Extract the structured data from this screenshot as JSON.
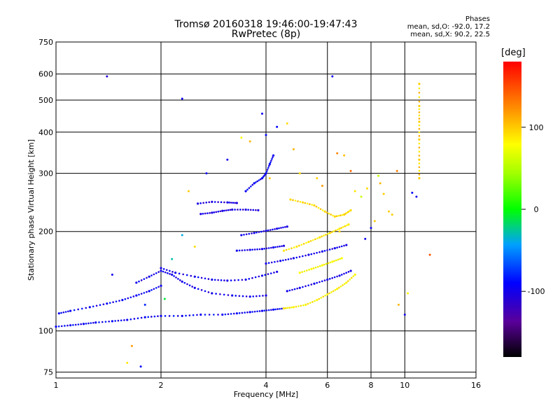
{
  "chart_data": {
    "type": "scatter",
    "title": "Tromsø 20160318 19:46:00-19:47:43",
    "subtitle": "RwPretec (8p)",
    "xlabel": "Frequency [MHz]",
    "ylabel": "Stationary phase Virtual Height [km]",
    "x_scale": "log",
    "y_scale": "log",
    "xlim": [
      1,
      16
    ],
    "ylim": [
      72,
      750
    ],
    "grid": true,
    "x_ticks": [
      {
        "value": 1,
        "label": "1"
      },
      {
        "value": 2,
        "label": "2"
      },
      {
        "value": 4,
        "label": "4"
      },
      {
        "value": 6,
        "label": "6"
      },
      {
        "value": 8,
        "label": "8"
      },
      {
        "value": 10,
        "label": "10"
      },
      {
        "value": 16,
        "label": "16"
      }
    ],
    "y_ticks": [
      {
        "value": 75,
        "label": "75"
      },
      {
        "value": 100,
        "label": "100"
      },
      {
        "value": 200,
        "label": "200"
      },
      {
        "value": 300,
        "label": "300"
      },
      {
        "value": 400,
        "label": "400"
      },
      {
        "value": 500,
        "label": "500"
      },
      {
        "value": 600,
        "label": "600"
      },
      {
        "value": 750,
        "label": "750"
      }
    ],
    "phases": {
      "title": "Phases",
      "o_line": "mean, sd,O: -92.0, 17.2",
      "x_line": "mean, sd,X: 90.2, 22.5"
    },
    "colorbar": {
      "unit": "[deg]",
      "ticks": [
        {
          "value": 100,
          "label": "100"
        },
        {
          "value": 0,
          "label": "0"
        },
        {
          "value": -100,
          "label": "-100"
        }
      ],
      "range": [
        -180,
        180
      ]
    },
    "traces": [
      {
        "name": "",
        "phase": -95,
        "points": [
          [
            1.0,
            103
          ],
          [
            1.1,
            104
          ],
          [
            1.2,
            105
          ],
          [
            1.3,
            106
          ],
          [
            1.45,
            107
          ],
          [
            1.6,
            108
          ],
          [
            1.8,
            110
          ],
          [
            2.0,
            111
          ],
          [
            2.3,
            111
          ],
          [
            2.6,
            112
          ],
          [
            3.0,
            112
          ],
          [
            3.3,
            113
          ],
          [
            3.6,
            114
          ],
          [
            3.9,
            115
          ],
          [
            4.2,
            116
          ],
          [
            4.5,
            117
          ]
        ]
      },
      {
        "name": "",
        "phase": -95,
        "points": [
          [
            1.02,
            113
          ],
          [
            1.1,
            115
          ],
          [
            1.25,
            118
          ],
          [
            1.4,
            121
          ],
          [
            1.55,
            124
          ],
          [
            1.7,
            128
          ],
          [
            1.85,
            132
          ],
          [
            2.0,
            137
          ]
        ]
      },
      {
        "name": "",
        "phase": -100,
        "points": [
          [
            1.7,
            140
          ],
          [
            1.85,
            146
          ],
          [
            2.0,
            152
          ],
          [
            2.15,
            148
          ],
          [
            2.3,
            141
          ],
          [
            2.5,
            135
          ],
          [
            2.8,
            130
          ],
          [
            3.2,
            128
          ],
          [
            3.6,
            127
          ],
          [
            4.0,
            128
          ]
        ]
      },
      {
        "name": "",
        "phase": -100,
        "points": [
          [
            2.0,
            155
          ],
          [
            2.2,
            150
          ],
          [
            2.5,
            146
          ],
          [
            2.8,
            143
          ],
          [
            3.1,
            142
          ],
          [
            3.5,
            143
          ],
          [
            3.9,
            147
          ],
          [
            4.3,
            151
          ]
        ]
      },
      {
        "name": "",
        "phase": -105,
        "points": [
          [
            2.6,
            226
          ],
          [
            2.8,
            228
          ],
          [
            3.0,
            231
          ],
          [
            3.2,
            233
          ],
          [
            3.5,
            233
          ],
          [
            3.8,
            232
          ]
        ]
      },
      {
        "name": "",
        "phase": -105,
        "points": [
          [
            2.55,
            243
          ],
          [
            2.8,
            246
          ],
          [
            3.1,
            245
          ],
          [
            3.3,
            244
          ]
        ]
      },
      {
        "name": "",
        "phase": -100,
        "points": [
          [
            3.3,
            175
          ],
          [
            3.6,
            176
          ],
          [
            3.9,
            177
          ],
          [
            4.2,
            179
          ],
          [
            4.5,
            181
          ]
        ]
      },
      {
        "name": "",
        "phase": -100,
        "points": [
          [
            3.4,
            195
          ],
          [
            3.7,
            198
          ],
          [
            4.0,
            201
          ],
          [
            4.3,
            204
          ],
          [
            4.6,
            207
          ]
        ]
      },
      {
        "name": "",
        "phase": -95,
        "points": [
          [
            3.5,
            265
          ],
          [
            3.7,
            280
          ],
          [
            3.9,
            290
          ],
          [
            4.0,
            300
          ],
          [
            4.1,
            320
          ],
          [
            4.2,
            340
          ]
        ]
      },
      {
        "name": "",
        "phase": -100,
        "points": [
          [
            4.0,
            160
          ],
          [
            4.4,
            163
          ],
          [
            4.8,
            166
          ],
          [
            5.3,
            170
          ],
          [
            5.8,
            174
          ],
          [
            6.3,
            178
          ],
          [
            6.8,
            182
          ]
        ]
      },
      {
        "name": "",
        "phase": -100,
        "points": [
          [
            4.6,
            132
          ],
          [
            5.0,
            135
          ],
          [
            5.5,
            139
          ],
          [
            6.0,
            143
          ],
          [
            6.5,
            147
          ],
          [
            7.0,
            152
          ]
        ]
      },
      {
        "name": "",
        "phase": 85,
        "points": [
          [
            4.5,
            117
          ],
          [
            4.8,
            118
          ],
          [
            5.2,
            120
          ],
          [
            5.6,
            124
          ],
          [
            6.0,
            129
          ],
          [
            6.4,
            134
          ],
          [
            6.8,
            140
          ],
          [
            7.2,
            148
          ]
        ]
      },
      {
        "name": "",
        "phase": 90,
        "points": [
          [
            4.5,
            175
          ],
          [
            4.9,
            180
          ],
          [
            5.3,
            186
          ],
          [
            5.7,
            192
          ],
          [
            6.1,
            198
          ],
          [
            6.5,
            204
          ],
          [
            6.9,
            210
          ]
        ]
      },
      {
        "name": "",
        "phase": 95,
        "points": [
          [
            4.7,
            250
          ],
          [
            5.1,
            245
          ],
          [
            5.5,
            240
          ],
          [
            5.9,
            230
          ],
          [
            6.3,
            222
          ],
          [
            6.7,
            225
          ],
          [
            7.0,
            232
          ]
        ]
      },
      {
        "name": "",
        "phase": 80,
        "points": [
          [
            5.0,
            150
          ],
          [
            5.4,
            154
          ],
          [
            5.8,
            158
          ],
          [
            6.2,
            162
          ],
          [
            6.6,
            166
          ]
        ]
      },
      {
        "name": "",
        "phase": 100,
        "points": [
          [
            11.0,
            290
          ],
          [
            11.0,
            330
          ],
          [
            11.0,
            380
          ],
          [
            11.0,
            430
          ],
          [
            11.0,
            480
          ],
          [
            11.0,
            560
          ]
        ]
      }
    ],
    "scattered_points": [
      [
        1.4,
        590,
        -110
      ],
      [
        2.3,
        505,
        -95
      ],
      [
        3.9,
        455,
        -95
      ],
      [
        4.3,
        415,
        -90
      ],
      [
        4.6,
        425,
        95
      ],
      [
        3.4,
        385,
        80
      ],
      [
        3.1,
        330,
        -100
      ],
      [
        4.0,
        392,
        -90
      ],
      [
        1.45,
        148,
        -100
      ],
      [
        1.6,
        80,
        90
      ],
      [
        1.65,
        90,
        120
      ],
      [
        1.75,
        78,
        -90
      ],
      [
        1.8,
        120,
        -80
      ],
      [
        2.4,
        265,
        100
      ],
      [
        2.5,
        180,
        95
      ],
      [
        2.3,
        195,
        -40
      ],
      [
        6.5,
        200,
        100
      ],
      [
        7.2,
        265,
        90
      ],
      [
        7.5,
        255,
        60
      ],
      [
        8.0,
        205,
        -95
      ],
      [
        8.2,
        215,
        100
      ],
      [
        8.5,
        280,
        110
      ],
      [
        8.7,
        260,
        100
      ],
      [
        9.0,
        230,
        100
      ],
      [
        9.5,
        305,
        130
      ],
      [
        10.0,
        112,
        -100
      ],
      [
        10.2,
        130,
        80
      ],
      [
        11.8,
        170,
        150
      ],
      [
        10.5,
        262,
        -90
      ],
      [
        6.2,
        590,
        -95
      ],
      [
        6.4,
        345,
        130
      ],
      [
        7.0,
        305,
        140
      ],
      [
        5.0,
        300,
        95
      ],
      [
        4.8,
        355,
        110
      ],
      [
        5.6,
        290,
        100
      ],
      [
        5.8,
        275,
        120
      ],
      [
        7.8,
        270,
        95
      ],
      [
        8.4,
        295,
        60
      ],
      [
        9.2,
        225,
        100
      ],
      [
        10.8,
        255,
        -100
      ],
      [
        3.6,
        375,
        110
      ],
      [
        2.7,
        300,
        -95
      ],
      [
        4.1,
        290,
        100
      ],
      [
        6.7,
        340,
        105
      ],
      [
        7.7,
        190,
        -100
      ],
      [
        9.6,
        120,
        110
      ],
      [
        2.15,
        165,
        -30
      ],
      [
        2.05,
        125,
        -10
      ]
    ]
  }
}
